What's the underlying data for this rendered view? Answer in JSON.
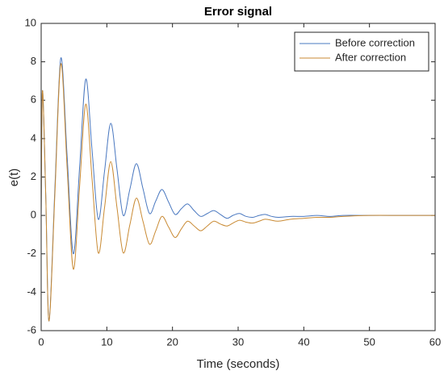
{
  "chart_data": {
    "type": "line",
    "title": "Error signal",
    "x_label": "Time (seconds)",
    "y_label": "e(t)",
    "x": [
      0,
      0.2,
      0.7,
      1.2,
      2.1,
      3.0,
      3.95,
      4.9,
      5.85,
      6.8,
      7.75,
      8.7,
      9.65,
      10.6,
      11.55,
      12.5,
      13.5,
      14.5,
      15.5,
      16.5,
      17.45,
      18.4,
      19.4,
      20.4,
      21.35,
      22.3,
      23.3,
      24.3,
      25.3,
      26.3,
      27.3,
      28.3,
      29.2,
      30.2,
      31.2,
      32.2,
      33.2,
      34.1,
      35.1,
      36.1,
      38,
      40,
      42,
      44,
      46,
      50,
      55,
      60
    ],
    "series": [
      {
        "name": "Before correction",
        "color": "#4a78c0",
        "values": [
          0,
          6.5,
          1.0,
          -5.5,
          1.5,
          8.2,
          3.1,
          -2.0,
          2.5,
          7.1,
          3.4,
          -0.2,
          2.3,
          4.8,
          2.4,
          0.0,
          1.35,
          2.7,
          1.4,
          0.1,
          0.75,
          1.35,
          0.7,
          0.05,
          0.35,
          0.6,
          0.25,
          -0.05,
          0.1,
          0.25,
          0.05,
          -0.15,
          0,
          0.1,
          -0.05,
          -0.1,
          0,
          0.05,
          -0.05,
          -0.1,
          -0.05,
          -0.05,
          0,
          -0.05,
          0,
          0,
          0,
          0
        ]
      },
      {
        "name": "After correction",
        "color": "#c98a33",
        "values": [
          0,
          6.5,
          1.0,
          -5.5,
          1.2,
          7.9,
          2.5,
          -2.8,
          1.5,
          5.8,
          1.9,
          -1.95,
          0.4,
          2.8,
          0.4,
          -1.95,
          -0.5,
          0.9,
          -0.3,
          -1.5,
          -0.8,
          -0.05,
          -0.6,
          -1.15,
          -0.7,
          -0.3,
          -0.55,
          -0.8,
          -0.55,
          -0.3,
          -0.45,
          -0.55,
          -0.4,
          -0.25,
          -0.35,
          -0.4,
          -0.3,
          -0.2,
          -0.25,
          -0.3,
          -0.2,
          -0.15,
          -0.1,
          -0.1,
          -0.05,
          0,
          0,
          0
        ]
      }
    ],
    "xlim": [
      0,
      60
    ],
    "xticks": [
      0,
      10,
      20,
      30,
      40,
      50,
      60
    ],
    "ylim": [
      -6,
      10
    ],
    "yticks": [
      -6,
      -4,
      -2,
      0,
      2,
      4,
      6,
      8,
      10
    ],
    "legend": "northeast"
  }
}
